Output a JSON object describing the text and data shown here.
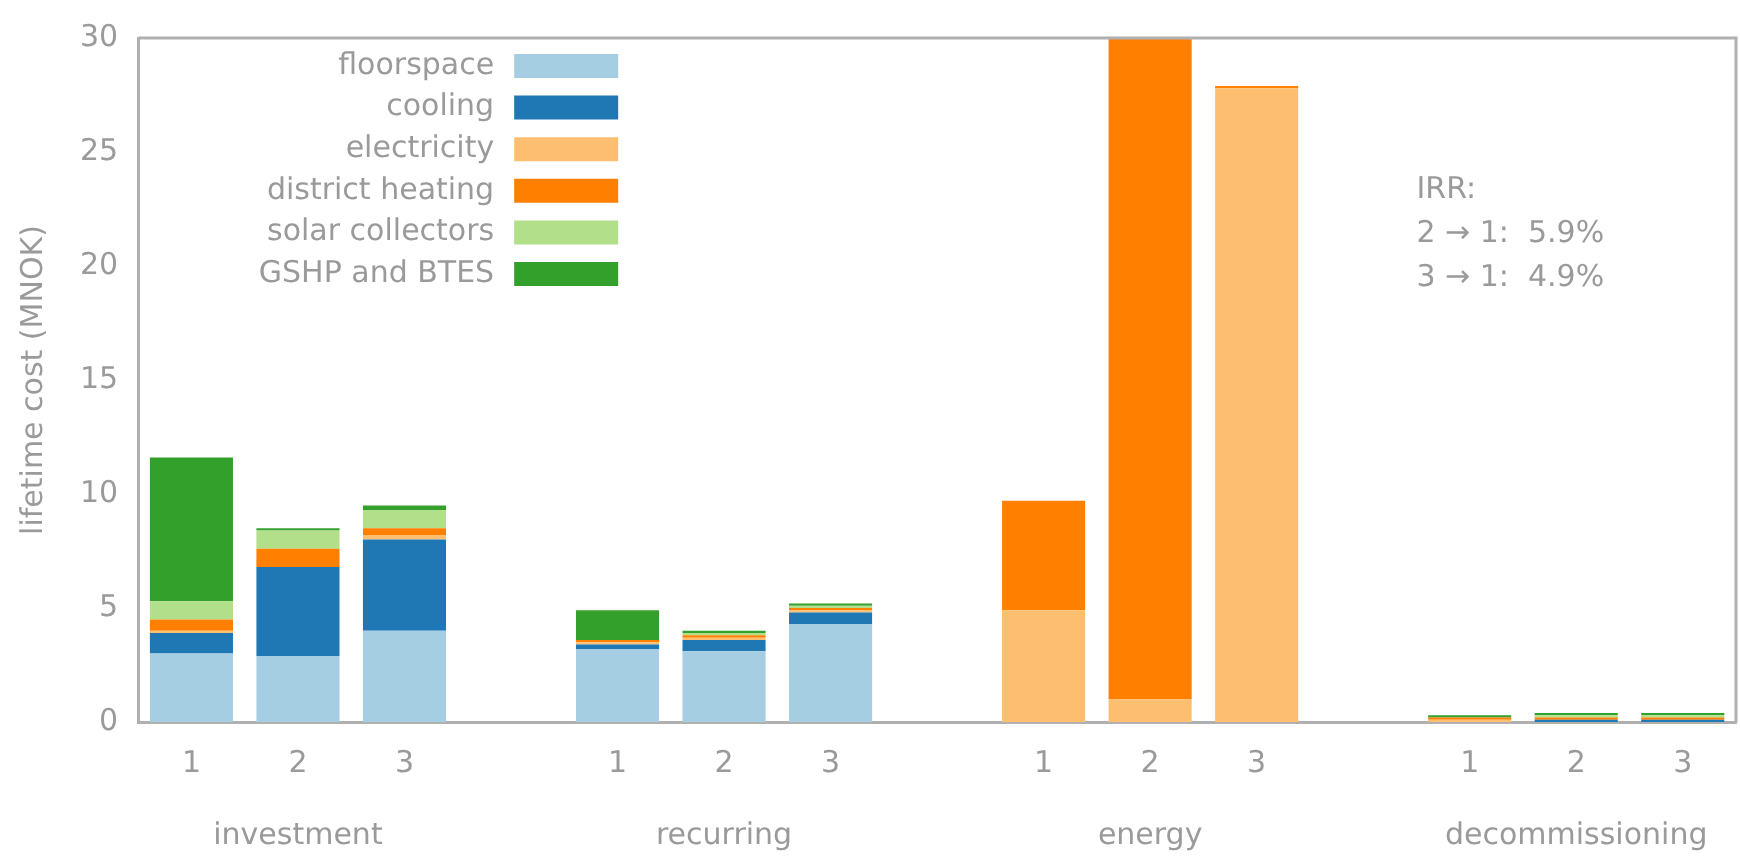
{
  "chart_data": {
    "type": "bar",
    "stacked": true,
    "ylabel": "lifetime cost (MNOK)",
    "ylim": [
      0,
      30
    ],
    "yticks": [
      0,
      5,
      10,
      15,
      20,
      25,
      30
    ],
    "grid": false,
    "legend": "top left",
    "categories": [
      "1",
      "2",
      "3",
      null,
      "1",
      "2",
      "3",
      null,
      "1",
      "2",
      "3",
      null,
      "1",
      "2",
      "3"
    ],
    "series": [
      {
        "name": "floorspace",
        "color": "#a6cee3",
        "values": [
          3.0,
          2.9,
          4.0,
          null,
          3.2,
          3.1,
          4.3,
          null,
          0,
          0,
          0,
          null,
          null,
          null,
          null
        ]
      },
      {
        "name": "cooling",
        "color": "#1f78b4",
        "values": [
          0.9,
          3.9,
          4.0,
          null,
          0.2,
          0.5,
          0.5,
          null,
          0,
          0,
          0,
          null,
          0,
          0.1,
          0.1
        ]
      },
      {
        "name": "electricity",
        "color": "#fdbf6f",
        "values": [
          0.1,
          0,
          0.2,
          null,
          0.1,
          0.1,
          0.1,
          null,
          4.9,
          1.0,
          27.8,
          null,
          0.1,
          0,
          0
        ]
      },
      {
        "name": "district heating",
        "color": "#ff7f00",
        "values": [
          0.5,
          0.8,
          0.3,
          null,
          0.1,
          0.1,
          0.1,
          null,
          4.8,
          29.0,
          0.1,
          null,
          0.1,
          0.1,
          0.1
        ]
      },
      {
        "name": "solar collectors",
        "color": "#b2df8a",
        "values": [
          0.8,
          0.8,
          0.8,
          null,
          null,
          0.1,
          0.1,
          null,
          0,
          0,
          0,
          null,
          null,
          0.1,
          0.1
        ]
      },
      {
        "name": "GSHP and BTES",
        "color": "#33a02c",
        "values": [
          6.3,
          0.1,
          0.2,
          null,
          1.3,
          0.1,
          0.1,
          null,
          0,
          0,
          0,
          null,
          0.1,
          0.1,
          0.1
        ]
      }
    ],
    "annotations": [
      "investment",
      "recurring",
      "energy",
      "decommissioning",
      "IRR:\n2 → 1:  5.9%\n3 → 1:  4.9%"
    ]
  }
}
